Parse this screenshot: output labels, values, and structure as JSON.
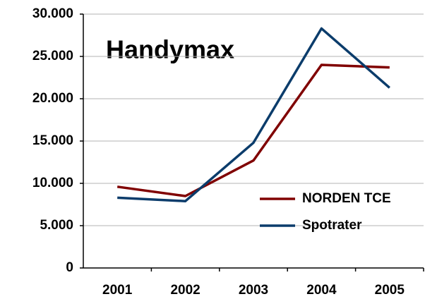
{
  "chart_data": {
    "type": "line",
    "title": "Handymax",
    "categories": [
      "2001",
      "2002",
      "2003",
      "2004",
      "2005"
    ],
    "series": [
      {
        "name": "NORDEN TCE",
        "color": "#800000",
        "values": [
          9600,
          8500,
          12700,
          24000,
          23700
        ]
      },
      {
        "name": "Spotrater",
        "color": "#0b3c6b",
        "values": [
          8300,
          7900,
          14800,
          28300,
          21300
        ]
      }
    ],
    "ylim": [
      0,
      30000
    ],
    "yticks": [
      0,
      {
        "value": 5000,
        "label": "5.000"
      },
      {
        "value": 10000,
        "label": "10.000"
      },
      {
        "value": 15000,
        "label": "15.000"
      },
      {
        "value": 20000,
        "label": "20.000"
      },
      {
        "value": 25000,
        "label": "25.000"
      },
      {
        "value": 30000,
        "label": "30.000"
      }
    ],
    "grid": true,
    "legend": "lower right"
  }
}
